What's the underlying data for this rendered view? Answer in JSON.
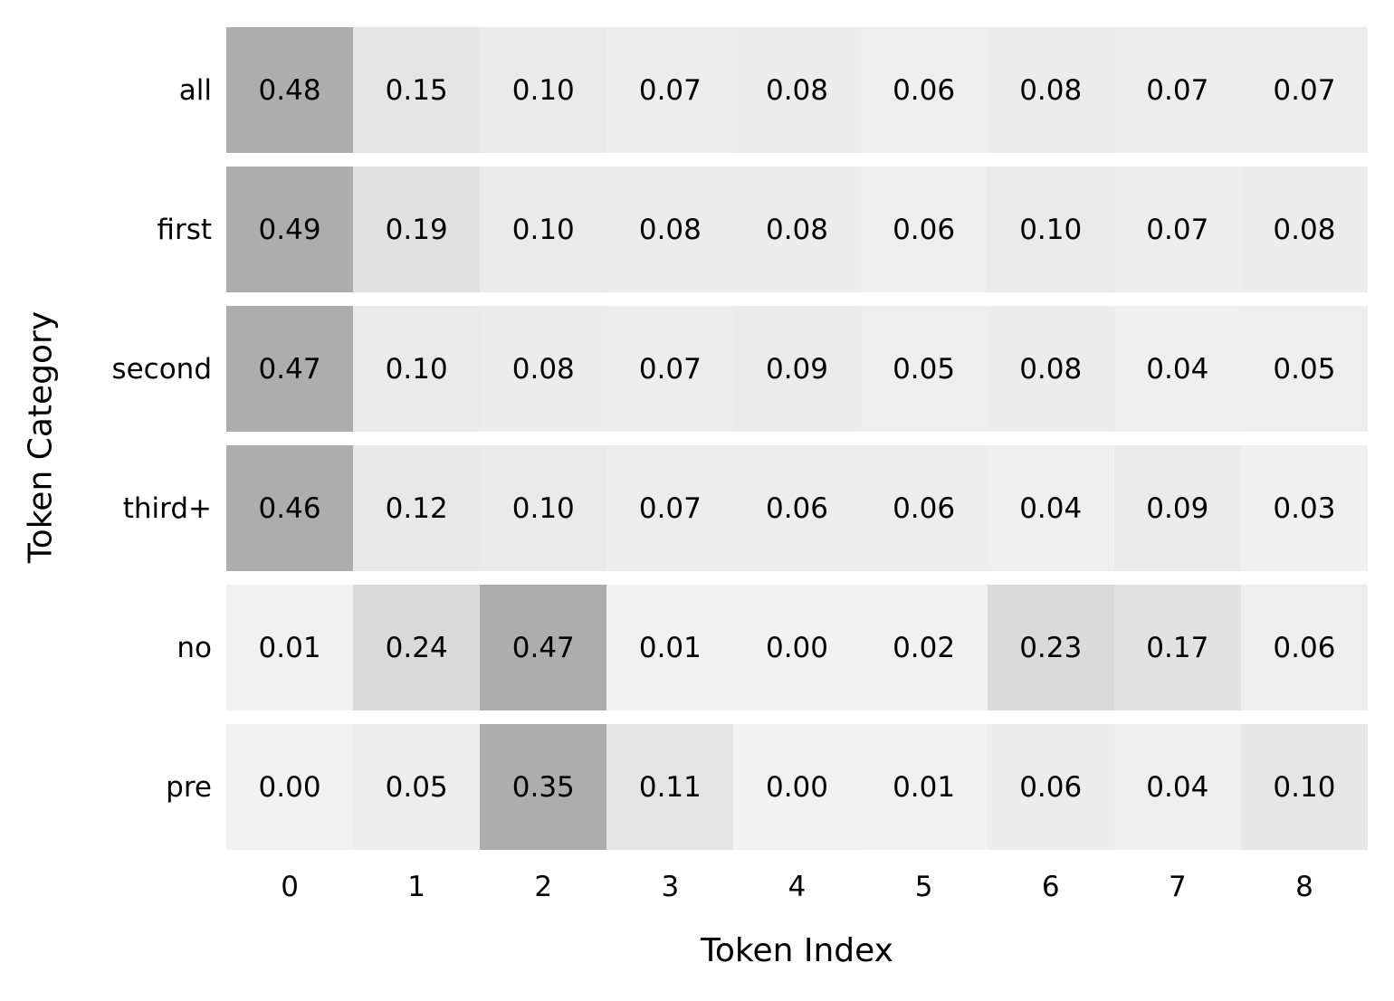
{
  "chart_data": {
    "type": "heatmap",
    "title": "",
    "xlabel": "Token Index",
    "ylabel": "Token Category",
    "columns": [
      "0",
      "1",
      "2",
      "3",
      "4",
      "5",
      "6",
      "7",
      "8"
    ],
    "rows": [
      {
        "label": "all",
        "values": [
          0.48,
          0.15,
          0.1,
          0.07,
          0.08,
          0.06,
          0.08,
          0.07,
          0.07
        ]
      },
      {
        "label": "first",
        "values": [
          0.49,
          0.19,
          0.1,
          0.08,
          0.08,
          0.06,
          0.1,
          0.07,
          0.08
        ]
      },
      {
        "label": "second",
        "values": [
          0.47,
          0.1,
          0.08,
          0.07,
          0.09,
          0.05,
          0.08,
          0.04,
          0.05
        ]
      },
      {
        "label": "third+",
        "values": [
          0.46,
          0.12,
          0.1,
          0.07,
          0.06,
          0.06,
          0.04,
          0.09,
          0.03
        ]
      },
      {
        "label": "no",
        "values": [
          0.01,
          0.24,
          0.47,
          0.01,
          0.0,
          0.02,
          0.23,
          0.17,
          0.06
        ]
      },
      {
        "label": "pre",
        "values": [
          0.0,
          0.05,
          0.35,
          0.11,
          0.0,
          0.01,
          0.06,
          0.04,
          0.1
        ]
      }
    ],
    "annotation_format": "0.00",
    "normalization": "per-row-max",
    "colors": {
      "cell_min": "#f2f2f2",
      "cell_max": "#adadad",
      "row_gap": "#ffffff",
      "text": "#000000",
      "background": "#ffffff"
    },
    "legend": "none",
    "grid": "off"
  }
}
